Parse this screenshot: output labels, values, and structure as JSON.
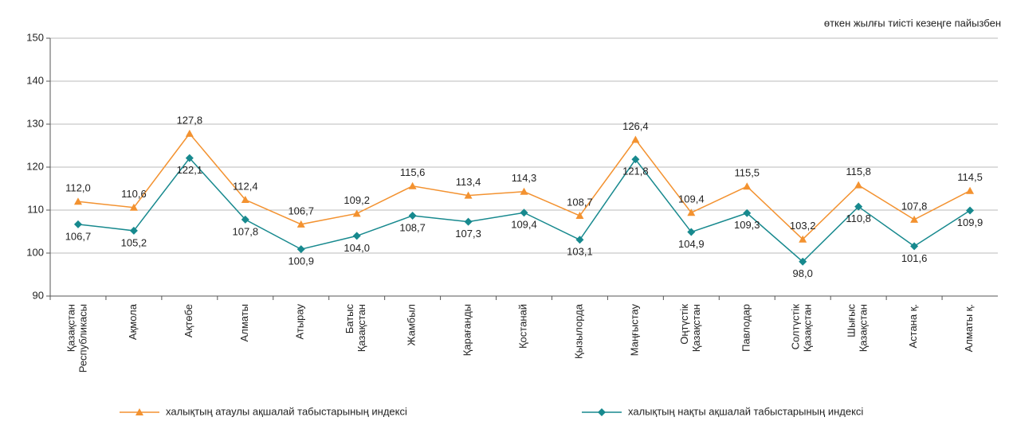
{
  "chart_data": {
    "type": "line",
    "subtitle": "өткен жылғы тиісті кезеңге пайызбен",
    "categories": [
      "Қазақстан\nРеспубликасы",
      "Ақмола",
      "Ақтөбе",
      "Алматы",
      "Атырау",
      "Батыс\nҚазақстан",
      "Жамбыл",
      "Қарағанды",
      "Қостанай",
      "Қызылорда",
      "Маңғыстау",
      "Оңтүстік\nҚазақстан",
      "Павлодар",
      "Солтүстік\nҚазақстан",
      "Шығыс\nҚазақстан",
      "Астана  қ.",
      "Алматы қ."
    ],
    "series": [
      {
        "name": "халықтың атаулы ақшалай табыстарының индексі",
        "color": "#f39230",
        "marker": "triangle",
        "values": [
          112.0,
          110.6,
          127.8,
          112.4,
          106.7,
          109.2,
          115.6,
          113.4,
          114.3,
          108.7,
          126.4,
          109.4,
          115.5,
          103.2,
          115.8,
          107.8,
          114.5
        ],
        "value_labels": [
          "112,0",
          "110,6",
          "127,8",
          "112,4",
          "106,7",
          "109,2",
          "115,6",
          "113,4",
          "114,3",
          "108,7",
          "126,4",
          "109,4",
          "115,5",
          "103,2",
          "115,8",
          "107,8",
          "114,5"
        ]
      },
      {
        "name": "халықтың нақты ақшалай табыстарының индексі",
        "color": "#17898e",
        "marker": "diamond",
        "values": [
          106.7,
          105.2,
          122.1,
          107.8,
          100.9,
          104.0,
          108.7,
          107.3,
          109.4,
          103.1,
          121.8,
          104.9,
          109.3,
          98.0,
          110.8,
          101.6,
          109.9
        ],
        "value_labels": [
          "106,7",
          "105,2",
          "122,1",
          "107,8",
          "100,9",
          "104,0",
          "108,7",
          "107,3",
          "109,4",
          "103,1",
          "121,8",
          "104,9",
          "109,3",
          "98,0",
          "110,8",
          "101,6",
          "109,9"
        ]
      }
    ],
    "ylim": [
      90,
      150
    ],
    "yticks": [
      90,
      100,
      110,
      120,
      130,
      140,
      150
    ],
    "grid": true
  }
}
